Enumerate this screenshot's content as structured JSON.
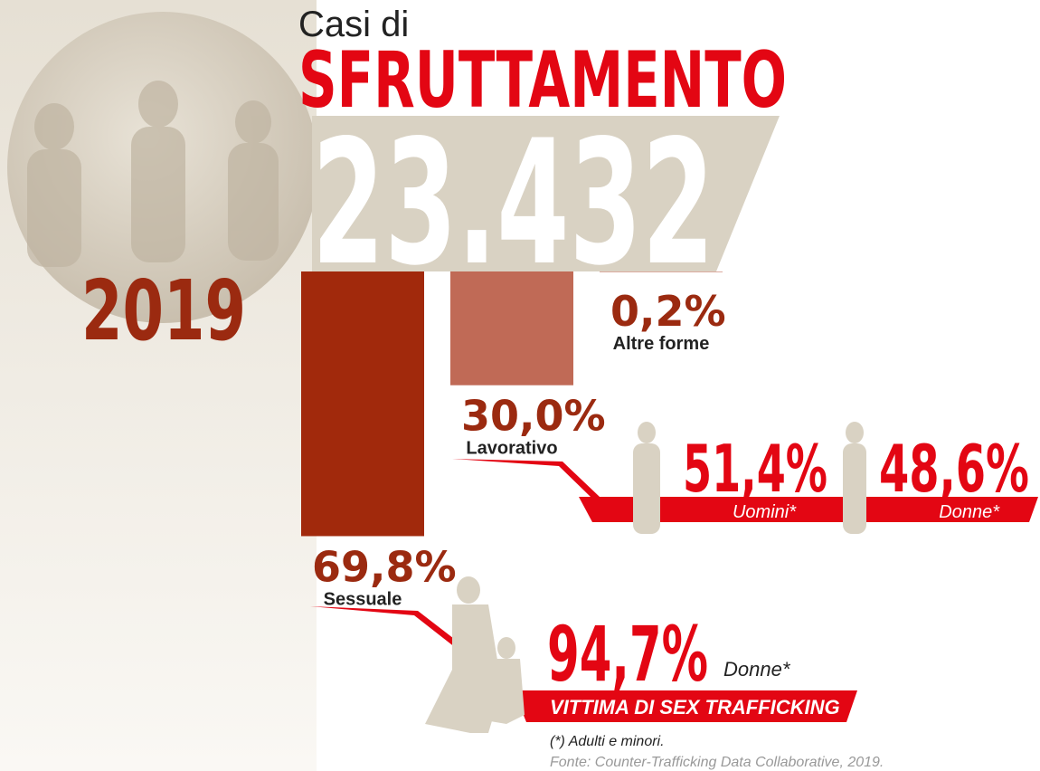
{
  "chart_data": {
    "type": "bar",
    "title": "Casi di",
    "subtitle": "SFRUTTAMENTO",
    "total": "23.432",
    "year": "2019",
    "categories": [
      "Sessuale",
      "Lavorativo",
      "Altre forme"
    ],
    "values": [
      69.8,
      30.0,
      0.2
    ],
    "value_labels": [
      "69,8%",
      "30,0%",
      "0,2%"
    ],
    "colors": [
      "#a1290c",
      "#c06a56",
      "#d59b8e"
    ]
  },
  "gender": [
    {
      "value": "51,4%",
      "label": "Uomini*"
    },
    {
      "value": "48,6%",
      "label": "Donne*"
    }
  ],
  "sex_trafficking": {
    "value": "94,7%",
    "label": "Donne*",
    "banner": "VITTIMA DI SEX TRAFFICKING"
  },
  "footnote": "(*) Adulti e minori.",
  "source": "Fonte: Counter-Trafficking Data Collaborative, 2019."
}
